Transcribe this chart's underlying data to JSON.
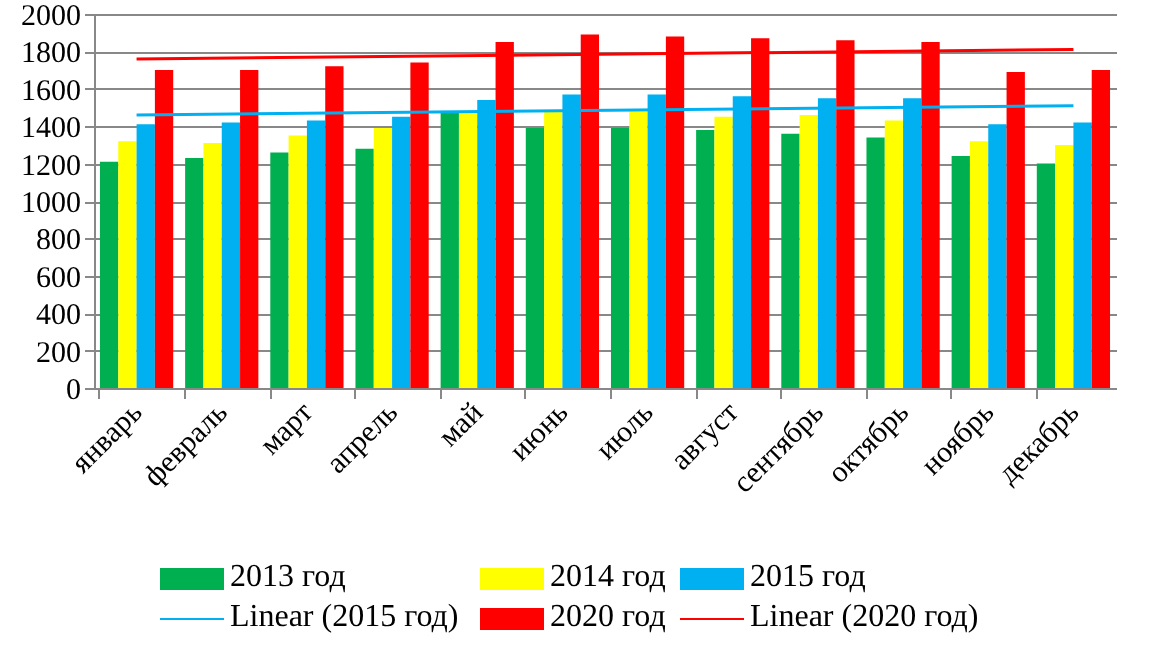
{
  "chart_data": {
    "type": "bar",
    "categories": [
      "январь",
      "февраль",
      "март",
      "апрель",
      "май",
      "июнь",
      "июль",
      "август",
      "сентябрь",
      "октябрь",
      "ноябрь",
      "декабрь"
    ],
    "series": [
      {
        "name": "2013 год",
        "color": "#00b050",
        "values": [
          1210,
          1230,
          1260,
          1280,
          1480,
          1390,
          1390,
          1380,
          1360,
          1340,
          1240,
          1200
        ]
      },
      {
        "name": "2014 год",
        "color": "#ffff00",
        "values": [
          1320,
          1310,
          1350,
          1390,
          1480,
          1480,
          1480,
          1450,
          1460,
          1430,
          1320,
          1300
        ]
      },
      {
        "name": "2015 год",
        "color": "#00b0f0",
        "values": [
          1410,
          1420,
          1430,
          1450,
          1540,
          1570,
          1570,
          1560,
          1550,
          1550,
          1410,
          1420
        ]
      },
      {
        "name": "Linear (2015 год)",
        "type": "line",
        "color": "#00b0f0",
        "x": [
          "январь",
          "декабрь"
        ],
        "values": [
          1460,
          1510
        ]
      },
      {
        "name": "2020 год",
        "color": "#ff0000",
        "values": [
          1700,
          1700,
          1720,
          1740,
          1850,
          1890,
          1880,
          1870,
          1860,
          1850,
          1690,
          1700
        ]
      },
      {
        "name": "Linear (2020 год)",
        "type": "line",
        "color": "#ff0000",
        "x": [
          "январь",
          "декабрь"
        ],
        "values": [
          1760,
          1810
        ]
      }
    ],
    "ylim": [
      0,
      2000
    ],
    "yticks": [
      0,
      200,
      400,
      600,
      800,
      1000,
      1200,
      1400,
      1600,
      1800,
      2000
    ],
    "grid": "y",
    "legend": "bottom"
  }
}
